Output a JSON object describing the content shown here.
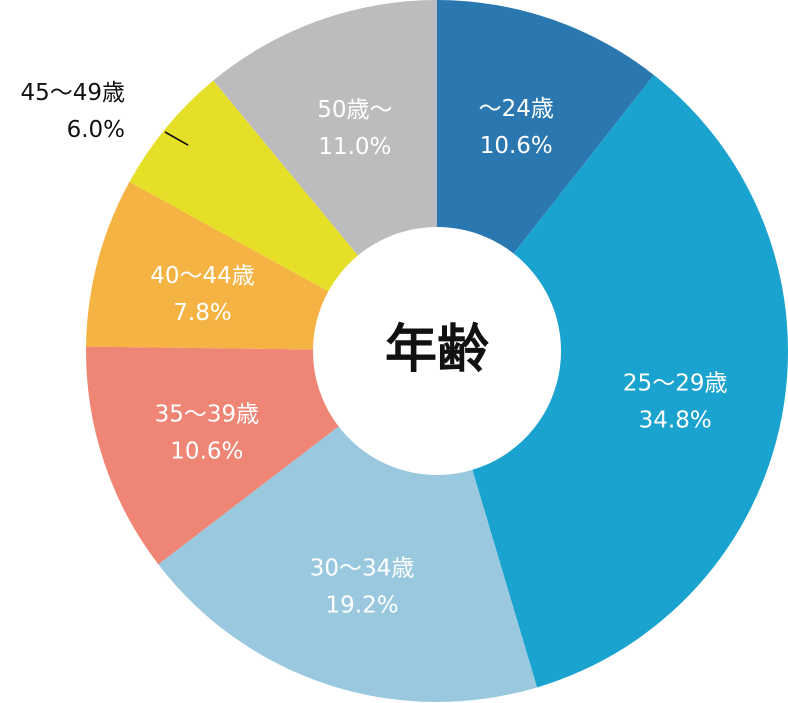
{
  "chart_data": {
    "type": "pie",
    "title": "年齢",
    "slices": [
      {
        "label": "～24歳",
        "value": 10.6,
        "value_label": "10.6%",
        "color": "#2b78b0"
      },
      {
        "label": "25～29歳",
        "value": 34.8,
        "value_label": "34.8%",
        "color": "#1aa3cf"
      },
      {
        "label": "30～34歳",
        "value": 19.2,
        "value_label": "19.2%",
        "color": "#9ac9df"
      },
      {
        "label": "35～39歳",
        "value": 10.6,
        "value_label": "10.6%",
        "color": "#ee8575"
      },
      {
        "label": "40～44歳",
        "value": 7.8,
        "value_label": "7.8%",
        "color": "#f4b342"
      },
      {
        "label": "45～49歳",
        "value": 6.0,
        "value_label": "6.0%",
        "color": "#e6df27",
        "label_outside": true
      },
      {
        "label": "50歳～",
        "value": 11.0,
        "value_label": "11.0%",
        "color": "#bcbcbe"
      }
    ],
    "legend": "none"
  }
}
